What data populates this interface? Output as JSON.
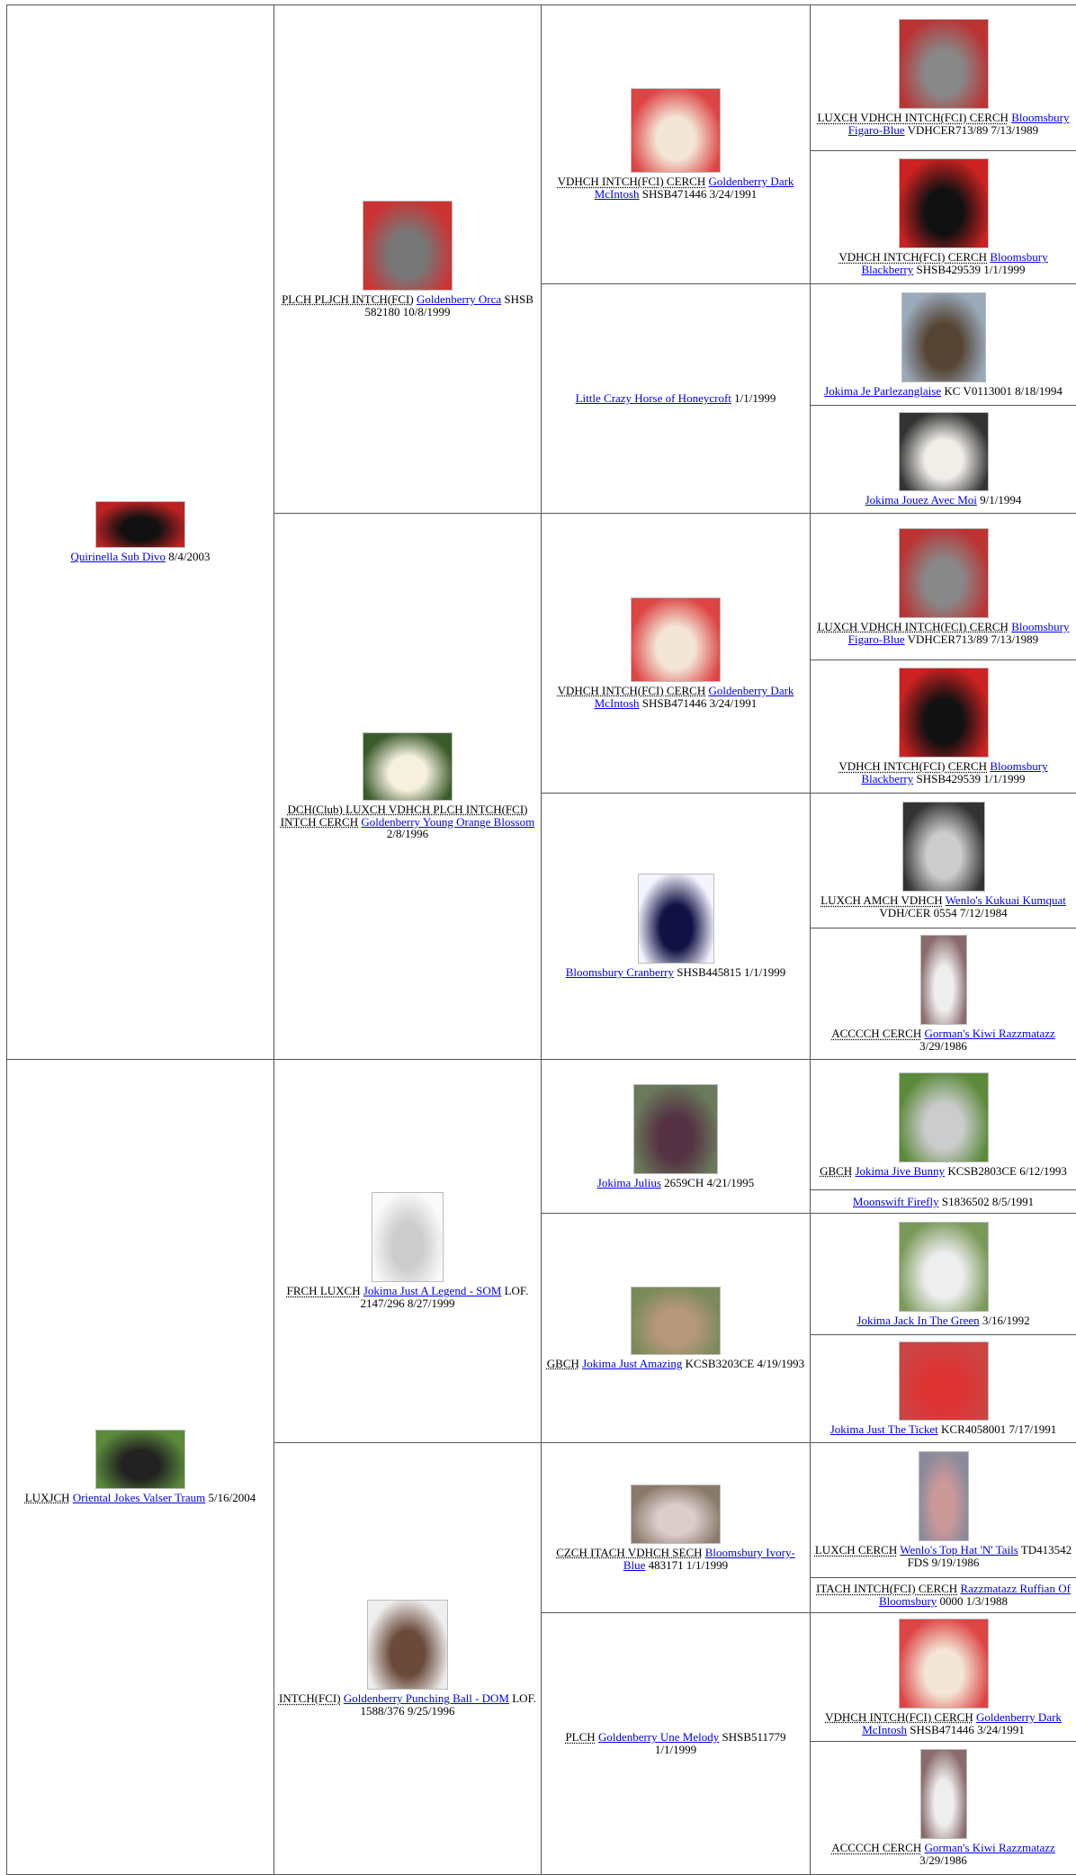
{
  "pedigree": {
    "gen1": [
      {
        "name": "Quirinella Sub Divo",
        "info": "8/4/2003"
      },
      {
        "titles": "LUXJCH",
        "name": "Oriental Jokes Valser Traum",
        "info": "5/16/2004"
      }
    ],
    "gen2": [
      {
        "titles": "PLCH PLJCH INTCH(FCI)",
        "name": "Goldenberry Orca",
        "info": "SHSB 582180 10/8/1999"
      },
      {
        "titles": "DCH(Club) LUXCH VDHCH PLCH INTCH(FCI) INTCH CERCH",
        "name": "Goldenberry Young Orange Blossom",
        "info": "2/8/1996"
      },
      {
        "titles": "FRCH LUXCH",
        "name": "Jokima Just A Legend - SOM",
        "info": "LOF. 2147/296 8/27/1999"
      },
      {
        "titles": "INTCH(FCI)",
        "name": "Goldenberry Punching Ball - DOM",
        "info": "LOF. 1588/376 9/25/1996"
      }
    ],
    "gen3": [
      {
        "titles": "VDHCH INTCH(FCI) CERCH",
        "name": "Goldenberry Dark McIntosh",
        "info": "SHSB471446 3/24/1991"
      },
      {
        "name": "Little Crazy Horse of Honeycroft",
        "info": "1/1/1999"
      },
      {
        "titles": "VDHCH INTCH(FCI) CERCH",
        "name": "Goldenberry Dark McIntosh",
        "info": "SHSB471446 3/24/1991"
      },
      {
        "name": "Bloomsbury Cranberry",
        "info": "SHSB445815 1/1/1999"
      },
      {
        "name": "Jokima Julius",
        "info": "2659CH 4/21/1995"
      },
      {
        "titles": "GBCH",
        "name": "Jokima Just Amazing",
        "info": "KCSB3203CE 4/19/1993"
      },
      {
        "titles": "CZCH ITACH VDHCH SECH",
        "name": "Bloomsbury Ivory-Blue",
        "info": "483171 1/1/1999"
      },
      {
        "titles": "PLCH",
        "name": "Goldenberry Une Melody",
        "info": "SHSB511779 1/1/1999"
      }
    ],
    "gen4": [
      {
        "titles": "LUXCH VDHCH INTCH(FCI) CERCH",
        "name": "Bloomsbury Figaro-Blue",
        "info": "VDHCER713/89 7/13/1989"
      },
      {
        "titles": "VDHCH INTCH(FCI) CERCH",
        "name": "Bloomsbury Blackberry",
        "info": "SHSB429539 1/1/1999"
      },
      {
        "name": "Jokima Je Parlezanglaise",
        "info": "KC V0113001 8/18/1994"
      },
      {
        "name": "Jokima Jouez Avec Moi",
        "info": "9/1/1994"
      },
      {
        "titles": "LUXCH VDHCH INTCH(FCI) CERCH",
        "name": "Bloomsbury Figaro-Blue",
        "info": "VDHCER713/89 7/13/1989"
      },
      {
        "titles": "VDHCH INTCH(FCI) CERCH",
        "name": "Bloomsbury Blackberry",
        "info": "SHSB429539 1/1/1999"
      },
      {
        "titles": "LUXCH AMCH VDHCH",
        "name": "Wenlo's Kukuai Kumquat",
        "info": "VDH/CER 0554 7/12/1984"
      },
      {
        "titles": "ACCCCH CERCH",
        "name": "Gorman's Kiwi Razzmatazz",
        "info": "3/29/1986"
      },
      {
        "titles": "GBCH",
        "name": "Jokima Jive Bunny",
        "info": "KCSB2803CE 6/12/1993"
      },
      {
        "name": "Moonswift Firefly",
        "info": "S1836502 8/5/1991"
      },
      {
        "name": "Jokima Jack In The Green",
        "info": "3/16/1992"
      },
      {
        "name": "Jokima Just The Ticket",
        "info": "KCR4058001 7/17/1991"
      },
      {
        "titles": "LUXCH CERCH",
        "name": "Wenlo's Top Hat 'N' Tails",
        "info": "TD413542 FDS 9/19/1986"
      },
      {
        "titles": "ITACH INTCH(FCI) CERCH",
        "name": "Razzmatazz Ruffian Of Bloomsbury",
        "info": "0000 1/3/1988"
      },
      {
        "titles": "VDHCH INTCH(FCI) CERCH",
        "name": "Goldenberry Dark McIntosh",
        "info": "SHSB471446 3/24/1991"
      },
      {
        "titles": "ACCCCH CERCH",
        "name": "Gorman's Kiwi Razzmatazz",
        "info": "3/29/1986"
      }
    ]
  }
}
